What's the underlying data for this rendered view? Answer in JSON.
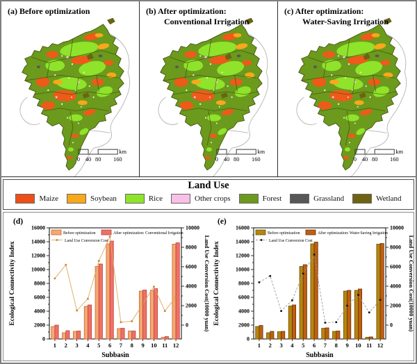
{
  "panels": [
    {
      "title_line1": "(a) Before optimization",
      "title_line2": ""
    },
    {
      "title_line1": "(b) After optimization:",
      "title_line2": "Conventional Irrigation"
    },
    {
      "title_line1": "(c)  After optimization:",
      "title_line2": "Water-Saving Irrigation"
    }
  ],
  "scalebar": {
    "labels": [
      "0",
      "40",
      "80",
      "160"
    ],
    "unit": "km"
  },
  "landuse_legend": {
    "title": "Land Use",
    "items": [
      {
        "label": "Maize",
        "color": "#EE4F18"
      },
      {
        "label": "Soybean",
        "color": "#F7A81B"
      },
      {
        "label": "Rice",
        "color": "#8FE32B"
      },
      {
        "label": "Other crops",
        "color": "#F9C0E8"
      },
      {
        "label": "Forest",
        "color": "#6B9A1C"
      },
      {
        "label": "Grassland",
        "color": "#575757"
      },
      {
        "label": "Wetland",
        "color": "#6E6311"
      }
    ]
  },
  "chart_data": [
    {
      "type": "bar+line",
      "panel_label": "(d)",
      "categories": [
        "1",
        "2",
        "3",
        "4",
        "5",
        "6",
        "7",
        "8",
        "9",
        "10",
        "11",
        "12"
      ],
      "series": [
        {
          "name": "Before optimization",
          "fill": "#F5A873",
          "stroke": "#C26A2E",
          "values": [
            1800,
            900,
            1100,
            4700,
            10450,
            13700,
            1500,
            1150,
            6900,
            7000,
            250,
            13650
          ]
        },
        {
          "name": "After optimization: Conventional Irrigation",
          "fill": "#F07065",
          "stroke": "#BA423B",
          "values": [
            2000,
            1200,
            1150,
            4900,
            10800,
            14100,
            1550,
            1150,
            7050,
            7250,
            350,
            13850
          ]
        }
      ],
      "line": {
        "name": "Land Use Conversion Cost",
        "color": "#DCA85F",
        "marker_color": "#C8872B",
        "dashed": false,
        "values": [
          4800,
          6200,
          1500,
          2700,
          6600,
          9100,
          300,
          400,
          2200,
          3950,
          1450,
          2900
        ]
      },
      "xlabel": "Subbasin",
      "ylabel_left": "Ecological Connectivity Index",
      "ylabel_right": "Land Use Conversion Cost(10000 yuan)",
      "ylim_left": [
        0,
        16000
      ],
      "yticks_left": [
        0,
        2000,
        4000,
        6000,
        8000,
        10000,
        12000,
        14000,
        16000
      ],
      "yticks_right": [
        0,
        2000,
        4000,
        6000,
        8000,
        10000
      ],
      "ylim_right_top": 10000
    },
    {
      "type": "bar+line",
      "panel_label": "(e)",
      "categories": [
        "1",
        "2",
        "3",
        "4",
        "5",
        "6",
        "7",
        "8",
        "9",
        "10",
        "11",
        "12"
      ],
      "series": [
        {
          "name": "Before optimization",
          "fill": "#B5860F",
          "stroke": "#6B4F06",
          "values": [
            1800,
            900,
            1050,
            4750,
            10450,
            13700,
            1550,
            1100,
            6900,
            7000,
            250,
            13650
          ]
        },
        {
          "name": "After optimization: Water-Saving Irrigation",
          "fill": "#C05E10",
          "stroke": "#64340A",
          "values": [
            1950,
            1100,
            1100,
            4900,
            10700,
            13950,
            1600,
            1150,
            7000,
            7200,
            300,
            13750
          ]
        }
      ],
      "line": {
        "name": "Land Use Conversion Cost",
        "color": "#9a9a9a",
        "marker_color": "#111111",
        "dashed": true,
        "values": [
          4400,
          5050,
          1450,
          2550,
          5300,
          7250,
          250,
          300,
          2000,
          3100,
          1300,
          2600
        ]
      },
      "xlabel": "Subbasin",
      "ylabel_left": "Ecological Connectivity Index",
      "ylabel_right": "Land Use Conversion Cost(10000 yuan)",
      "ylim_left": [
        0,
        16000
      ],
      "yticks_left": [
        0,
        2000,
        4000,
        6000,
        8000,
        10000,
        12000,
        14000,
        16000
      ],
      "yticks_right": [
        0,
        2000,
        4000,
        6000,
        8000,
        10000
      ],
      "ylim_right_top": 10000
    }
  ]
}
